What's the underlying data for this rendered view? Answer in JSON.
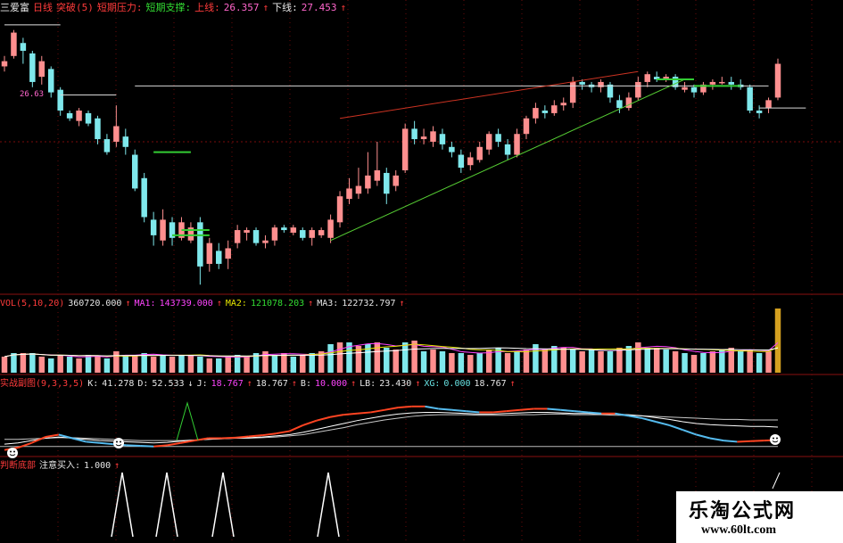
{
  "header": {
    "stock_name": "三爱富",
    "period": "日线",
    "indicator": "突破(5)",
    "pressure_label": "短期压力:",
    "support_label": "短期支撑:",
    "upper_label": "上线:",
    "upper_value": "26.357",
    "lower_label": "下线:",
    "lower_value": "27.453"
  },
  "volume_panel": {
    "label": "VOL(5,10,20)",
    "vol": "360720.000",
    "ma1_label": "MA1:",
    "ma1": "143739.000",
    "ma2_label": "MA2:",
    "ma2": "121078.203",
    "ma3_label": "MA3:",
    "ma3": "122732.797"
  },
  "kdj_panel": {
    "label": "实战副图(9,3,3,5)",
    "k_label": "K:",
    "k": "41.278",
    "d_label": "D:",
    "d": "52.533",
    "j_label": "J:",
    "j": "18.767",
    "j2": "18.767",
    "b_label": "B:",
    "b": "10.000",
    "lb_label": "LB:",
    "lb": "23.430",
    "xg_label": "XG:",
    "xg": "0.000",
    "last": "18.767"
  },
  "signal_panel": {
    "label": "判断底部",
    "buy_label": "注意买入:",
    "buy_value": "1.000"
  },
  "peak_label": "26.63",
  "watermark": {
    "title": "乐淘公式网",
    "url": "www.60lt.com"
  },
  "colors": {
    "up": "#ff8f8f",
    "down": "#7fe8ec",
    "k_line": "#ffffff",
    "d_line": "#c8c8c8",
    "j_line_up": "#ff4422",
    "j_line_down": "#55bbee"
  },
  "chart_data": [
    {
      "type": "candlestick",
      "title": "三爱富 日线",
      "candles": [
        [
          26.2,
          26.4,
          26.6,
          26.0
        ],
        [
          26.6,
          27.5,
          27.6,
          26.5
        ],
        [
          27.1,
          26.8,
          27.3,
          26.3
        ],
        [
          26.7,
          25.6,
          26.8,
          25.4
        ],
        [
          25.8,
          26.4,
          26.6,
          25.5
        ],
        [
          26.1,
          25.2,
          26.2,
          25.0
        ],
        [
          25.3,
          24.5,
          25.4,
          24.3
        ],
        [
          24.4,
          24.2,
          24.5,
          24.1
        ],
        [
          24.1,
          24.5,
          24.6,
          23.9
        ],
        [
          24.4,
          24.0,
          24.5,
          23.9
        ],
        [
          24.2,
          23.4,
          24.3,
          23.2
        ],
        [
          23.4,
          22.9,
          23.6,
          22.8
        ],
        [
          23.3,
          23.9,
          24.7,
          23.1
        ],
        [
          23.5,
          23.1,
          23.8,
          22.8
        ],
        [
          22.8,
          21.5,
          23.0,
          21.4
        ],
        [
          21.9,
          20.4,
          22.1,
          20.2
        ],
        [
          20.3,
          19.7,
          20.6,
          19.3
        ],
        [
          19.5,
          20.3,
          20.7,
          19.3
        ],
        [
          20.2,
          19.6,
          20.4,
          19.3
        ],
        [
          19.6,
          20.2,
          20.4,
          19.5
        ],
        [
          19.5,
          20.0,
          20.2,
          19.4
        ],
        [
          20.2,
          18.5,
          20.4,
          17.8
        ],
        [
          18.6,
          19.4,
          19.6,
          18.3
        ],
        [
          19.1,
          18.6,
          19.4,
          18.4
        ],
        [
          18.8,
          19.2,
          19.5,
          18.4
        ],
        [
          19.4,
          19.9,
          20.1,
          19.2
        ],
        [
          19.8,
          19.9,
          20.0,
          19.5
        ],
        [
          19.9,
          19.4,
          20.0,
          19.3
        ],
        [
          19.4,
          19.5,
          19.7,
          19.2
        ],
        [
          19.5,
          20.0,
          20.1,
          19.3
        ],
        [
          20.0,
          19.9,
          20.1,
          19.8
        ],
        [
          19.8,
          20.0,
          20.1,
          19.7
        ],
        [
          19.9,
          19.6,
          20.0,
          19.5
        ],
        [
          19.6,
          19.9,
          20.0,
          19.3
        ],
        [
          19.7,
          19.9,
          20.0,
          19.6
        ],
        [
          19.6,
          20.3,
          20.5,
          19.4
        ],
        [
          20.2,
          21.2,
          21.4,
          20.0
        ],
        [
          21.1,
          21.5,
          21.9,
          20.9
        ],
        [
          21.3,
          21.6,
          22.3,
          21.1
        ],
        [
          21.5,
          22.0,
          22.9,
          21.3
        ],
        [
          21.8,
          22.2,
          23.3,
          21.6
        ],
        [
          22.1,
          21.3,
          22.3,
          20.9
        ],
        [
          21.6,
          22.0,
          22.2,
          21.4
        ],
        [
          22.2,
          23.8,
          24.0,
          22.1
        ],
        [
          23.8,
          23.4,
          24.1,
          23.2
        ],
        [
          23.4,
          23.5,
          23.8,
          23.2
        ],
        [
          23.3,
          23.7,
          23.9,
          23.1
        ],
        [
          23.6,
          23.2,
          23.8,
          23.0
        ],
        [
          23.1,
          22.9,
          23.3,
          22.7
        ],
        [
          22.8,
          22.3,
          23.0,
          22.1
        ],
        [
          22.4,
          22.7,
          22.9,
          22.2
        ],
        [
          22.6,
          23.1,
          23.3,
          22.5
        ],
        [
          23.0,
          23.6,
          23.7,
          22.8
        ],
        [
          23.6,
          23.3,
          23.8,
          23.1
        ],
        [
          23.2,
          22.8,
          23.4,
          22.6
        ],
        [
          22.8,
          23.6,
          23.8,
          22.7
        ],
        [
          23.6,
          24.2,
          24.3,
          23.4
        ],
        [
          24.2,
          24.6,
          24.8,
          24.0
        ],
        [
          24.5,
          24.4,
          24.7,
          24.2
        ],
        [
          24.4,
          24.7,
          24.9,
          24.3
        ],
        [
          24.7,
          24.8,
          25.0,
          24.5
        ],
        [
          24.8,
          25.6,
          25.8,
          24.6
        ],
        [
          25.6,
          25.5,
          25.7,
          25.3
        ],
        [
          25.5,
          25.4,
          25.6,
          25.2
        ],
        [
          25.4,
          25.6,
          25.7,
          25.2
        ],
        [
          25.5,
          25.0,
          25.6,
          24.8
        ],
        [
          24.9,
          24.6,
          25.1,
          24.4
        ],
        [
          24.6,
          25.0,
          25.2,
          24.5
        ],
        [
          25.0,
          25.6,
          25.8,
          24.9
        ],
        [
          25.6,
          25.9,
          26.0,
          25.4
        ],
        [
          25.8,
          25.7,
          26.0,
          25.6
        ],
        [
          25.7,
          25.8,
          25.9,
          25.6
        ],
        [
          25.8,
          25.4,
          25.9,
          25.3
        ],
        [
          25.3,
          25.4,
          25.6,
          25.2
        ],
        [
          25.4,
          25.2,
          25.5,
          25.0
        ],
        [
          25.2,
          25.5,
          25.6,
          25.1
        ],
        [
          25.5,
          25.6,
          25.7,
          25.3
        ],
        [
          25.6,
          25.6,
          25.8,
          25.5
        ],
        [
          25.6,
          25.5,
          25.8,
          25.3
        ],
        [
          25.5,
          25.4,
          25.7,
          25.3
        ],
        [
          25.4,
          24.5,
          25.5,
          24.4
        ],
        [
          24.5,
          24.4,
          24.7,
          24.2
        ],
        [
          24.6,
          24.9,
          25.0,
          24.4
        ],
        [
          25.0,
          26.3,
          26.5,
          24.9
        ]
      ]
    },
    {
      "type": "bar",
      "title": "VOL(5,10,20)",
      "values": [
        9,
        11,
        11,
        11,
        9,
        8,
        10,
        9,
        8,
        10,
        9,
        8,
        12,
        10,
        10,
        11,
        9,
        10,
        9,
        10,
        10,
        9,
        8,
        8,
        9,
        10,
        9,
        11,
        12,
        10,
        11,
        9,
        10,
        11,
        12,
        16,
        17,
        17,
        15,
        16,
        17,
        14,
        13,
        17,
        18,
        12,
        13,
        12,
        11,
        11,
        10,
        11,
        13,
        14,
        11,
        12,
        13,
        16,
        13,
        15,
        14,
        13,
        12,
        13,
        12,
        12,
        14,
        15,
        17,
        14,
        14,
        13,
        12,
        11,
        10,
        11,
        12,
        13,
        14,
        12,
        13,
        11,
        12,
        36
      ]
    },
    {
      "type": "line",
      "title": "实战副图(9,3,3,5)",
      "series": [
        {
          "name": "K",
          "values": [
            12,
            14,
            18,
            22,
            24,
            22,
            20,
            18,
            17,
            16,
            15,
            14,
            15,
            17,
            19,
            20,
            21,
            22,
            23,
            24,
            26,
            28,
            32,
            37,
            42,
            47,
            52,
            56,
            60,
            63,
            65,
            66,
            66,
            65,
            64,
            63,
            63,
            64,
            65,
            66,
            66,
            65,
            64,
            64,
            63,
            63,
            62,
            60,
            57,
            54,
            50,
            47,
            45,
            44,
            43,
            42,
            42,
            41
          ]
        },
        {
          "name": "D",
          "values": [
            20,
            20,
            21,
            22,
            23,
            23,
            22,
            21,
            20,
            19,
            18,
            18,
            18,
            18,
            19,
            20,
            21,
            22,
            22,
            23,
            24,
            26,
            28,
            32,
            36,
            40,
            45,
            49,
            53,
            56,
            59,
            61,
            62,
            62,
            62,
            61,
            61,
            61,
            62,
            62,
            63,
            63,
            62,
            62,
            62,
            61,
            61,
            60,
            59,
            58,
            57,
            56,
            55,
            54,
            54,
            53,
            53,
            53
          ]
        },
        {
          "name": "J",
          "values": [
            2,
            6,
            14,
            24,
            28,
            22,
            16,
            14,
            12,
            10,
            9,
            8,
            10,
            14,
            18,
            22,
            22,
            23,
            25,
            27,
            30,
            34,
            44,
            52,
            58,
            62,
            64,
            66,
            70,
            74,
            76,
            76,
            72,
            70,
            68,
            66,
            66,
            68,
            70,
            72,
            72,
            70,
            68,
            66,
            64,
            64,
            60,
            56,
            50,
            44,
            36,
            28,
            22,
            18,
            16,
            17,
            18,
            19
          ]
        }
      ]
    }
  ]
}
